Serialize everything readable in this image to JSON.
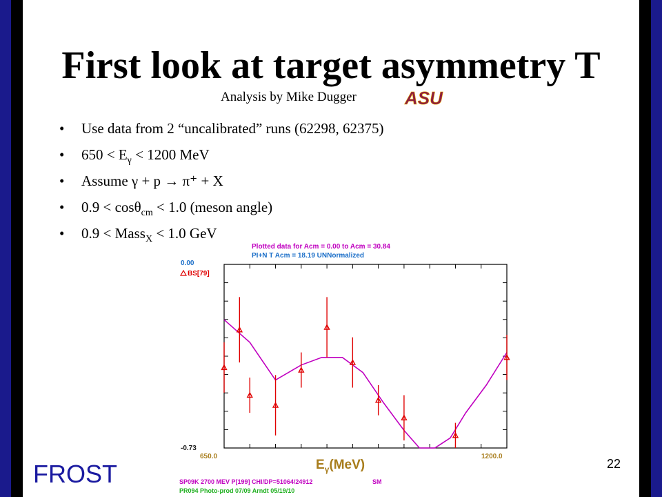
{
  "slide": {
    "title": "First look at target asymmetry T",
    "subtitle": "Analysis by Mike Dugger",
    "logo_text": "ASU",
    "footer_left": "FROST",
    "page_number": "22"
  },
  "bullets": [
    {
      "pre": "Use data from 2 “uncalibrated” runs (62298, 62375)"
    },
    {
      "pre": "650 < E",
      "sub": "γ",
      "post": " < 1200 MeV"
    },
    {
      "pre": "Assume γ + p → π⁺ + X"
    },
    {
      "pre": "0.9 < cosθ",
      "sub": "cm",
      "post": " < 1.0 (meson angle)"
    },
    {
      "pre": " 0.9 < Mass",
      "sub": "X",
      "post": " < 1.0 GeV"
    }
  ],
  "plot_text": {
    "header1": "Plotted data for Acm =  0.00 to Acm = 30.84",
    "header2": "PI+N  T     Acm = 18.19  UNNormalized",
    "ytop": "0.00",
    "ybottom": "-0.73",
    "legend": "BS[79]",
    "xleft": "650.0",
    "xright": "1200.0",
    "xlabel_main": "E",
    "xlabel_sub": "γ",
    "xlabel_unit": "(MeV)",
    "foot1a": "SP09K 2700 MEV P[199] CHI/DP=51064/24912",
    "foot1b": "SM",
    "foot2": "PR094  Photo-prod        07/09  Arndt  05/19/10"
  },
  "chart_data": {
    "type": "scatter",
    "xlim": [
      650,
      1200
    ],
    "ylim": [
      -0.73,
      0.0
    ],
    "series": [
      {
        "name": "BS[79]",
        "type": "scatter",
        "color": "#e00000",
        "points": [
          {
            "x": 650,
            "y": -0.41,
            "err": 0.1
          },
          {
            "x": 680,
            "y": -0.26,
            "err": 0.13
          },
          {
            "x": 700,
            "y": -0.52,
            "err": 0.07
          },
          {
            "x": 750,
            "y": -0.56,
            "err": 0.12
          },
          {
            "x": 800,
            "y": -0.42,
            "err": 0.07
          },
          {
            "x": 850,
            "y": -0.25,
            "err": 0.12
          },
          {
            "x": 900,
            "y": -0.39,
            "err": 0.1
          },
          {
            "x": 950,
            "y": -0.54,
            "err": 0.06
          },
          {
            "x": 1000,
            "y": -0.61,
            "err": 0.09
          },
          {
            "x": 1100,
            "y": -0.68,
            "err": 0.05
          },
          {
            "x": 1200,
            "y": -0.37,
            "err": 0.09
          }
        ]
      },
      {
        "name": "SM",
        "type": "line",
        "color": "#c000c0",
        "x": [
          650,
          700,
          750,
          800,
          840,
          880,
          920,
          960,
          1000,
          1030,
          1060,
          1090,
          1120,
          1160,
          1200
        ],
        "y": [
          -0.22,
          -0.31,
          -0.46,
          -0.4,
          -0.37,
          -0.37,
          -0.43,
          -0.55,
          -0.66,
          -0.73,
          -0.73,
          -0.69,
          -0.59,
          -0.48,
          -0.35
        ]
      }
    ]
  }
}
